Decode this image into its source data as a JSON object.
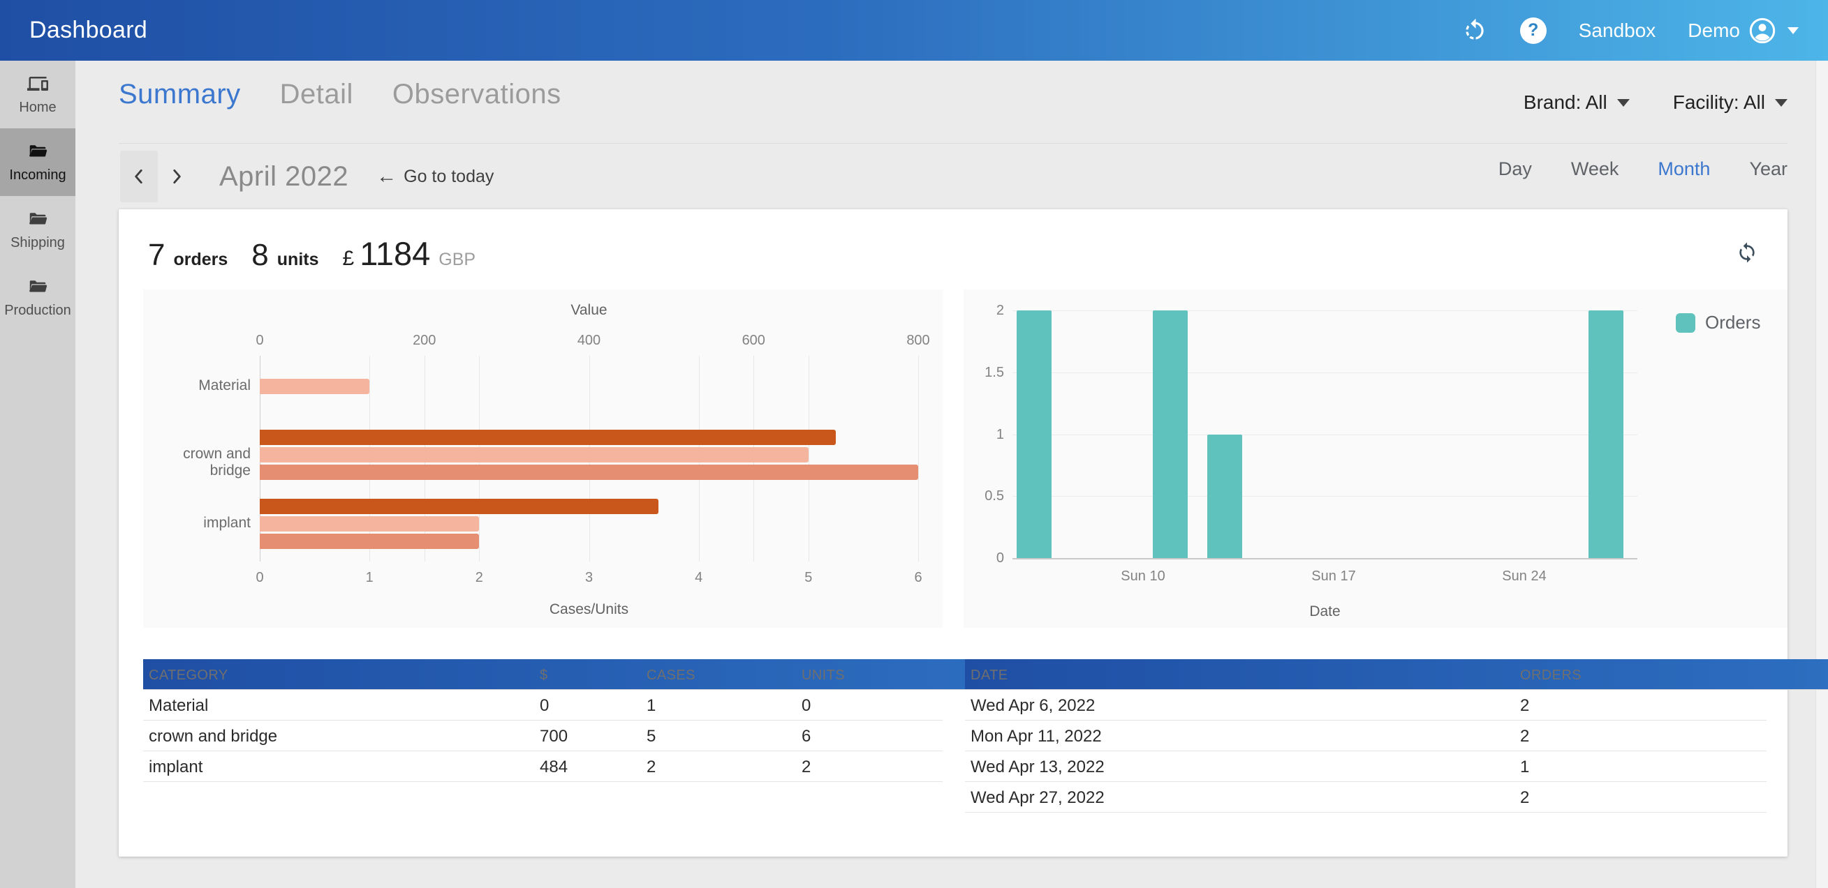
{
  "header": {
    "title": "Dashboard",
    "sandbox_label": "Sandbox",
    "user_label": "Demo"
  },
  "sidebar": {
    "items": [
      {
        "label": "Home",
        "icon": "home-devices-icon",
        "active": false
      },
      {
        "label": "Incoming",
        "icon": "folder-open-icon",
        "active": true
      },
      {
        "label": "Shipping",
        "icon": "folder-open-icon",
        "active": false
      },
      {
        "label": "Production",
        "icon": "folder-open-icon",
        "active": false
      }
    ]
  },
  "tabs": [
    {
      "label": "Summary",
      "active": true
    },
    {
      "label": "Detail",
      "active": false
    },
    {
      "label": "Observations",
      "active": false
    }
  ],
  "filters": {
    "brand_label": "Brand: All",
    "facility_label": "Facility: All"
  },
  "date_nav": {
    "period": "April 2022",
    "go_to_today": "Go to today",
    "views": [
      {
        "label": "Day",
        "active": false
      },
      {
        "label": "Week",
        "active": false
      },
      {
        "label": "Month",
        "active": true
      },
      {
        "label": "Year",
        "active": false
      }
    ]
  },
  "summary_stats": {
    "orders_value": "7",
    "orders_label": "orders",
    "units_value": "8",
    "units_label": "units",
    "currency_symbol": "£",
    "total_value": "1184",
    "currency_code": "GBP"
  },
  "chart_data": [
    {
      "type": "bar",
      "orientation": "horizontal",
      "top_axis": {
        "label": "Value",
        "ticks": [
          0,
          200,
          400,
          600,
          800
        ],
        "max": 800
      },
      "bottom_axis": {
        "label": "Cases/Units",
        "ticks": [
          0,
          1,
          2,
          3,
          4,
          5,
          6
        ],
        "max": 6
      },
      "categories": [
        "Material",
        "crown and bridge",
        "implant"
      ],
      "series": [
        {
          "name": "Value",
          "axis": "top",
          "color": "#c9571b",
          "values": [
            0,
            700,
            484
          ]
        },
        {
          "name": "Cases",
          "axis": "bottom",
          "color": "#f4b49e",
          "values": [
            1,
            5,
            2
          ]
        },
        {
          "name": "Units",
          "axis": "bottom",
          "color": "#e58e72",
          "values": [
            0,
            6,
            2
          ]
        }
      ],
      "grid": true
    },
    {
      "type": "bar",
      "orientation": "vertical",
      "xlabel": "Date",
      "ylim": [
        0,
        2
      ],
      "y_ticks": [
        0,
        0.5,
        1,
        1.5,
        2
      ],
      "x_ticks": [
        {
          "label": "Sun 10",
          "day": 10
        },
        {
          "label": "Sun 17",
          "day": 17
        },
        {
          "label": "Sun 24",
          "day": 24
        }
      ],
      "x_domain": {
        "month": "April 2022",
        "start_day": 5,
        "end_day": 28
      },
      "legend": [
        {
          "label": "Orders",
          "color": "#5fc2bc",
          "position": "top-right"
        }
      ],
      "points": [
        {
          "day": 6,
          "value": 2
        },
        {
          "day": 11,
          "value": 2
        },
        {
          "day": 13,
          "value": 1
        },
        {
          "day": 27,
          "value": 2
        }
      ],
      "grid": true
    }
  ],
  "category_table": {
    "headers": [
      "CATEGORY",
      "$",
      "CASES",
      "UNITS"
    ],
    "rows": [
      [
        "Material",
        "0",
        "1",
        "0"
      ],
      [
        "crown and bridge",
        "700",
        "5",
        "6"
      ],
      [
        "implant",
        "484",
        "2",
        "2"
      ]
    ]
  },
  "orders_table": {
    "headers": [
      "DATE",
      "ORDERS"
    ],
    "rows": [
      [
        "Wed Apr 6, 2022",
        "2"
      ],
      [
        "Mon Apr 11, 2022",
        "2"
      ],
      [
        "Wed Apr 13, 2022",
        "1"
      ],
      [
        "Wed Apr 27, 2022",
        "2"
      ]
    ]
  },
  "colors": {
    "header_gradient_left": "#1f4fa5",
    "header_gradient_right": "#4db5e8",
    "accent_blue": "#3b77ce",
    "bar_orange": "#c9571b",
    "bar_pink": "#f4b49e",
    "bar_salmon": "#e58e72",
    "bar_teal": "#5fc2bc",
    "sidebar_bg": "#d2d2d2",
    "sidebar_active_bg": "#a6a6a6"
  }
}
